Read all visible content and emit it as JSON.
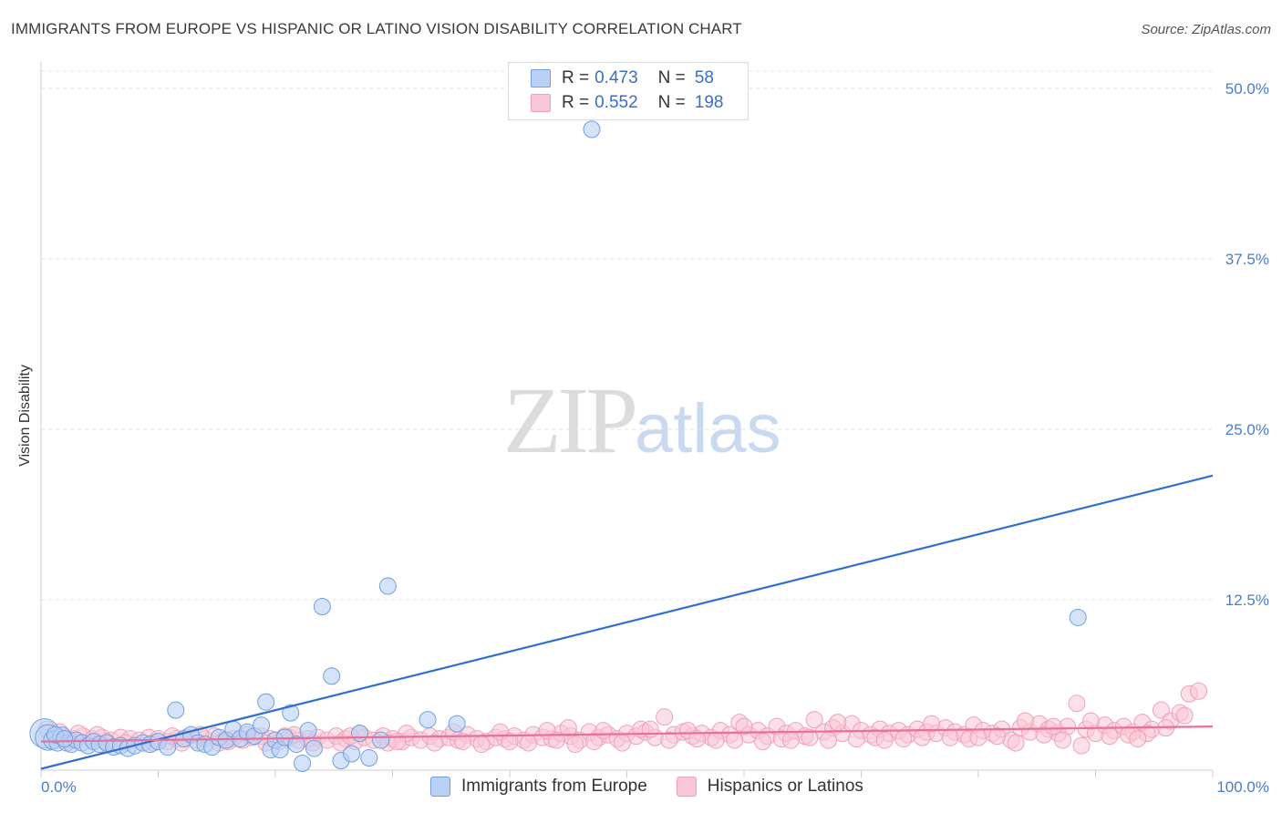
{
  "title": "IMMIGRANTS FROM EUROPE VS HISPANIC OR LATINO VISION DISABILITY CORRELATION CHART",
  "source": "Source: ZipAtlas.com",
  "watermark": {
    "zip": "ZIP",
    "atlas": "atlas"
  },
  "legend": {
    "series": [
      {
        "r_label": "R =",
        "r_value": "0.473",
        "n_label": "N =",
        "n_value": "58"
      },
      {
        "r_label": "R =",
        "r_value": "0.552",
        "n_label": "N =",
        "n_value": "198"
      }
    ]
  },
  "chart_data": {
    "type": "scatter",
    "title": "IMMIGRANTS FROM EUROPE VS HISPANIC OR LATINO VISION DISABILITY CORRELATION CHART",
    "xlabel": "",
    "ylabel": "Vision Disability",
    "xlim": [
      0,
      100
    ],
    "ylim": [
      0,
      50
    ],
    "x_tick_labels": [
      "0.0%",
      "100.0%"
    ],
    "y_ticks": [
      12.5,
      25.0,
      37.5,
      50.0
    ],
    "y_tick_labels": [
      "12.5%",
      "25.0%",
      "37.5%",
      "50.0%"
    ],
    "grid": true,
    "colors": {
      "europe": "#6f9fe0",
      "hispanic": "#f0a0b8",
      "europe_line": "#2f6fd0",
      "hispanic_line": "#e8709a",
      "europe_fill": "#b9d1f5",
      "hispanic_fill": "#f9c6d6"
    },
    "series": [
      {
        "name": "Immigrants from Europe",
        "r": 0.473,
        "n": 58,
        "trend": {
          "x": [
            0,
            100
          ],
          "y": [
            0.1,
            21.6
          ]
        },
        "points": [
          [
            0.3,
            2.7
          ],
          [
            0.6,
            2.4
          ],
          [
            1.0,
            2.2
          ],
          [
            1.4,
            2.0
          ],
          [
            1.8,
            2.5
          ],
          [
            2.2,
            2.0
          ],
          [
            2.6,
            1.9
          ],
          [
            3.0,
            2.2
          ],
          [
            3.5,
            2.0
          ],
          [
            4.0,
            1.8
          ],
          [
            4.5,
            2.1
          ],
          [
            5.0,
            1.9
          ],
          [
            5.6,
            2.0
          ],
          [
            6.2,
            1.7
          ],
          [
            6.8,
            1.8
          ],
          [
            7.4,
            1.6
          ],
          [
            8.0,
            1.8
          ],
          [
            8.7,
            2.0
          ],
          [
            9.3,
            1.9
          ],
          [
            10.0,
            2.1
          ],
          [
            10.8,
            1.7
          ],
          [
            11.5,
            4.4
          ],
          [
            12.2,
            2.3
          ],
          [
            12.8,
            2.6
          ],
          [
            13.4,
            2.0
          ],
          [
            14.0,
            1.9
          ],
          [
            14.6,
            1.7
          ],
          [
            15.2,
            2.4
          ],
          [
            15.8,
            2.2
          ],
          [
            16.4,
            3.0
          ],
          [
            17.0,
            2.3
          ],
          [
            17.6,
            2.8
          ],
          [
            18.2,
            2.5
          ],
          [
            18.8,
            3.3
          ],
          [
            19.2,
            5.0
          ],
          [
            19.6,
            1.5
          ],
          [
            20.0,
            2.2
          ],
          [
            20.4,
            1.5
          ],
          [
            20.8,
            2.4
          ],
          [
            21.3,
            4.2
          ],
          [
            21.8,
            1.9
          ],
          [
            22.3,
            0.5
          ],
          [
            22.8,
            2.9
          ],
          [
            23.3,
            1.6
          ],
          [
            24.0,
            12.0
          ],
          [
            24.8,
            6.9
          ],
          [
            25.6,
            0.7
          ],
          [
            26.5,
            1.2
          ],
          [
            27.2,
            2.7
          ],
          [
            28.0,
            0.9
          ],
          [
            29.0,
            2.2
          ],
          [
            29.6,
            13.5
          ],
          [
            33.0,
            3.7
          ],
          [
            35.5,
            3.4
          ],
          [
            47.0,
            47.0
          ],
          [
            88.5,
            11.2
          ],
          [
            1.2,
            2.6
          ],
          [
            2.0,
            2.3
          ]
        ],
        "sizes": [
          16,
          14,
          10,
          9,
          10,
          9,
          9,
          9,
          9,
          9,
          9,
          9,
          9,
          9,
          9,
          9,
          9,
          9,
          9,
          9,
          9,
          9,
          9,
          9,
          9,
          9,
          9,
          9,
          9,
          9,
          9,
          9,
          9,
          9,
          9,
          9,
          9,
          9,
          9,
          9,
          9,
          9,
          9,
          9,
          9,
          9,
          9,
          9,
          9,
          9,
          9,
          9,
          9,
          9,
          9,
          9,
          9,
          9
        ]
      },
      {
        "name": "Hispanics or Latinos",
        "r": 0.552,
        "n": 198,
        "trend": {
          "x": [
            0,
            100
          ],
          "y": [
            2.1,
            3.2
          ]
        },
        "points": [
          [
            0.5,
            3.0
          ],
          [
            1.2,
            2.6
          ],
          [
            2.0,
            2.4
          ],
          [
            2.8,
            2.3
          ],
          [
            3.6,
            2.5
          ],
          [
            4.4,
            2.3
          ],
          [
            5.2,
            2.4
          ],
          [
            6.0,
            2.2
          ],
          [
            6.8,
            2.4
          ],
          [
            7.6,
            2.3
          ],
          [
            8.4,
            2.2
          ],
          [
            9.2,
            2.4
          ],
          [
            10.0,
            2.3
          ],
          [
            10.8,
            2.1
          ],
          [
            11.6,
            2.3
          ],
          [
            12.4,
            2.4
          ],
          [
            13.2,
            2.2
          ],
          [
            14.0,
            2.3
          ],
          [
            14.8,
            2.5
          ],
          [
            15.6,
            2.2
          ],
          [
            16.4,
            2.3
          ],
          [
            17.2,
            2.2
          ],
          [
            18.0,
            2.4
          ],
          [
            18.8,
            2.5
          ],
          [
            19.6,
            2.3
          ],
          [
            20.4,
            2.1
          ],
          [
            21.2,
            2.4
          ],
          [
            22.0,
            2.2
          ],
          [
            22.8,
            2.3
          ],
          [
            23.6,
            2.4
          ],
          [
            24.4,
            2.2
          ],
          [
            25.2,
            2.5
          ],
          [
            26.0,
            2.3
          ],
          [
            26.8,
            2.1
          ],
          [
            27.6,
            2.4
          ],
          [
            28.4,
            2.2
          ],
          [
            29.2,
            2.5
          ],
          [
            30.0,
            2.3
          ],
          [
            30.8,
            2.1
          ],
          [
            31.6,
            2.4
          ],
          [
            32.4,
            2.2
          ],
          [
            33.2,
            2.5
          ],
          [
            34.0,
            2.3
          ],
          [
            34.8,
            2.4
          ],
          [
            35.6,
            2.2
          ],
          [
            36.4,
            2.6
          ],
          [
            37.2,
            2.3
          ],
          [
            38.0,
            2.1
          ],
          [
            38.8,
            2.4
          ],
          [
            39.6,
            2.3
          ],
          [
            40.4,
            2.5
          ],
          [
            41.2,
            2.2
          ],
          [
            42.0,
            2.6
          ],
          [
            42.8,
            2.4
          ],
          [
            43.6,
            2.3
          ],
          [
            44.4,
            2.7
          ],
          [
            45.2,
            2.5
          ],
          [
            46.0,
            2.2
          ],
          [
            46.8,
            2.8
          ],
          [
            47.6,
            2.4
          ],
          [
            48.4,
            2.6
          ],
          [
            49.2,
            2.3
          ],
          [
            50.0,
            2.7
          ],
          [
            50.8,
            2.5
          ],
          [
            51.6,
            2.8
          ],
          [
            52.4,
            2.4
          ],
          [
            53.2,
            3.9
          ],
          [
            54.0,
            2.6
          ],
          [
            54.8,
            2.8
          ],
          [
            55.6,
            2.5
          ],
          [
            56.4,
            2.7
          ],
          [
            57.2,
            2.4
          ],
          [
            58.0,
            2.9
          ],
          [
            58.8,
            2.6
          ],
          [
            59.6,
            3.5
          ],
          [
            60.4,
            2.6
          ],
          [
            61.2,
            2.9
          ],
          [
            62.0,
            2.5
          ],
          [
            62.8,
            3.2
          ],
          [
            63.6,
            2.7
          ],
          [
            64.4,
            2.9
          ],
          [
            65.2,
            2.5
          ],
          [
            66.0,
            3.7
          ],
          [
            66.8,
            2.8
          ],
          [
            67.6,
            3.1
          ],
          [
            68.4,
            2.7
          ],
          [
            69.2,
            3.4
          ],
          [
            70.0,
            2.9
          ],
          [
            70.8,
            2.6
          ],
          [
            71.6,
            3.0
          ],
          [
            72.4,
            2.7
          ],
          [
            73.2,
            2.9
          ],
          [
            74.0,
            2.6
          ],
          [
            74.8,
            3.0
          ],
          [
            75.6,
            2.8
          ],
          [
            76.4,
            2.7
          ],
          [
            77.2,
            3.1
          ],
          [
            78.0,
            2.8
          ],
          [
            78.8,
            2.6
          ],
          [
            79.6,
            3.3
          ],
          [
            80.4,
            2.9
          ],
          [
            81.2,
            2.7
          ],
          [
            82.0,
            3.0
          ],
          [
            82.8,
            2.2
          ],
          [
            83.6,
            3.1
          ],
          [
            84.4,
            2.8
          ],
          [
            85.2,
            3.4
          ],
          [
            86.0,
            3.0
          ],
          [
            86.8,
            2.7
          ],
          [
            87.6,
            3.2
          ],
          [
            88.4,
            4.9
          ],
          [
            89.2,
            3.0
          ],
          [
            90.0,
            2.7
          ],
          [
            90.8,
            3.3
          ],
          [
            91.6,
            2.9
          ],
          [
            92.4,
            3.2
          ],
          [
            93.2,
            2.8
          ],
          [
            94.0,
            3.5
          ],
          [
            94.8,
            3.0
          ],
          [
            95.6,
            4.4
          ],
          [
            96.4,
            3.6
          ],
          [
            97.2,
            4.2
          ],
          [
            98.0,
            5.6
          ],
          [
            98.8,
            5.8
          ],
          [
            1.6,
            2.8
          ],
          [
            3.2,
            2.7
          ],
          [
            5.6,
            2.1
          ],
          [
            7.2,
            2.0
          ],
          [
            9.6,
            2.0
          ],
          [
            12.0,
            2.0
          ],
          [
            13.6,
            2.6
          ],
          [
            15.2,
            2.0
          ],
          [
            17.6,
            2.6
          ],
          [
            19.2,
            2.0
          ],
          [
            21.6,
            2.6
          ],
          [
            23.2,
            2.0
          ],
          [
            25.6,
            2.0
          ],
          [
            27.2,
            2.7
          ],
          [
            29.6,
            2.0
          ],
          [
            31.2,
            2.7
          ],
          [
            33.6,
            2.0
          ],
          [
            35.2,
            2.8
          ],
          [
            37.6,
            1.9
          ],
          [
            39.2,
            2.8
          ],
          [
            41.6,
            2.0
          ],
          [
            43.2,
            2.9
          ],
          [
            45.6,
            1.9
          ],
          [
            47.2,
            2.1
          ],
          [
            49.6,
            2.0
          ],
          [
            51.2,
            3.0
          ],
          [
            53.6,
            2.2
          ],
          [
            55.2,
            2.9
          ],
          [
            57.6,
            2.2
          ],
          [
            59.2,
            2.2
          ],
          [
            61.6,
            2.1
          ],
          [
            63.2,
            2.3
          ],
          [
            65.6,
            2.4
          ],
          [
            67.2,
            2.2
          ],
          [
            69.6,
            2.3
          ],
          [
            71.2,
            2.4
          ],
          [
            73.6,
            2.3
          ],
          [
            75.2,
            2.4
          ],
          [
            77.6,
            2.4
          ],
          [
            79.2,
            2.3
          ],
          [
            81.6,
            2.5
          ],
          [
            83.2,
            2.0
          ],
          [
            85.6,
            2.6
          ],
          [
            87.2,
            2.2
          ],
          [
            88.8,
            1.8
          ],
          [
            89.6,
            3.6
          ],
          [
            91.2,
            2.5
          ],
          [
            92.8,
            2.6
          ],
          [
            94.4,
            2.7
          ],
          [
            96.0,
            3.1
          ],
          [
            97.6,
            4.0
          ],
          [
            45.0,
            3.1
          ],
          [
            52.0,
            3.0
          ],
          [
            60.0,
            3.2
          ],
          [
            68.0,
            3.5
          ],
          [
            76.0,
            3.4
          ],
          [
            84.0,
            3.6
          ],
          [
            86.4,
            3.2
          ],
          [
            2.4,
            2.2
          ],
          [
            4.8,
            2.6
          ],
          [
            11.2,
            2.5
          ],
          [
            16.0,
            2.1
          ],
          [
            20.8,
            2.5
          ],
          [
            26.4,
            2.5
          ],
          [
            30.4,
            2.1
          ],
          [
            36.0,
            2.1
          ],
          [
            40.0,
            2.1
          ],
          [
            44.0,
            2.2
          ],
          [
            48.0,
            2.9
          ],
          [
            56.0,
            2.3
          ],
          [
            64.0,
            2.2
          ],
          [
            72.0,
            2.2
          ],
          [
            80.0,
            2.4
          ],
          [
            93.6,
            2.3
          ]
        ]
      }
    ]
  },
  "bottom_legend": {
    "items": [
      {
        "label": "Immigrants from Europe"
      },
      {
        "label": "Hispanics or Latinos"
      }
    ]
  }
}
